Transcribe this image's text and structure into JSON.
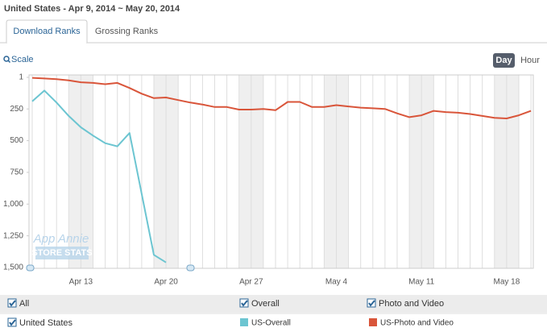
{
  "header": {
    "title": "United States - Apr 9, 2014 ~ May 20, 2014"
  },
  "tabs": [
    "Download Ranks",
    "Grossing Ranks"
  ],
  "controls": {
    "scale": "Scale",
    "day": "Day",
    "hour": "Hour"
  },
  "watermark": [
    "App Annie",
    "STORE STATS"
  ],
  "filters": {
    "country": "All",
    "feeds": [
      "Overall",
      "Photo and Video"
    ],
    "country_name": "United States"
  },
  "chart_data": {
    "type": "line",
    "categories": [
      null,
      null,
      null,
      null,
      "Apr 13",
      null,
      null,
      null,
      null,
      null,
      null,
      "Apr 20",
      null,
      null,
      null,
      null,
      null,
      null,
      "Apr 27",
      null,
      null,
      null,
      null,
      null,
      null,
      "May 4",
      null,
      null,
      null,
      null,
      null,
      null,
      "May 11",
      null,
      null,
      null,
      null,
      null,
      null,
      "May 18",
      null,
      null
    ],
    "ylim": [
      1,
      1500
    ],
    "y_inverted": true,
    "yticks": [
      1,
      250,
      500,
      750,
      {
        "value": 1000,
        "label": "1,000"
      },
      {
        "value": 1250,
        "label": "1,250"
      },
      {
        "value": 1500,
        "label": "1,500"
      }
    ],
    "series": [
      {
        "name": "US-Overall",
        "color": "#6cc5d1",
        "values": [
          190,
          105,
          200,
          305,
          395,
          460,
          520,
          545,
          440,
          920,
          1400,
          1460,
          null,
          null,
          null,
          null,
          null,
          null,
          null,
          null,
          null,
          null,
          null,
          null,
          null,
          null,
          null,
          null,
          null,
          null,
          null,
          null,
          null,
          null,
          null,
          null,
          null,
          null,
          null,
          null,
          null,
          null
        ]
      },
      {
        "name": "US-Photo and Video",
        "color": "#d9553a",
        "values": [
          5,
          10,
          15,
          25,
          40,
          45,
          55,
          45,
          85,
          130,
          165,
          160,
          180,
          200,
          215,
          235,
          235,
          255,
          255,
          250,
          260,
          195,
          195,
          235,
          235,
          220,
          230,
          240,
          245,
          250,
          285,
          315,
          300,
          265,
          275,
          280,
          290,
          305,
          320,
          325,
          300,
          265
        ]
      }
    ]
  }
}
